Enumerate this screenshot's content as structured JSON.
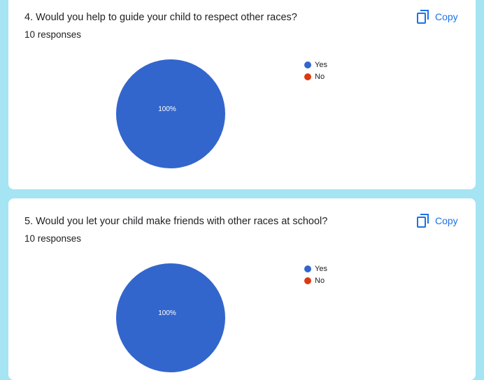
{
  "cards": [
    {
      "question": "4. Would you help to guide your child to respect other races?",
      "responses": "10 responses",
      "copy_label": "Copy",
      "legend": [
        {
          "label": "Yes",
          "color": "#3366cc"
        },
        {
          "label": "No",
          "color": "#dc3912"
        }
      ],
      "slice_label": "100%"
    },
    {
      "question": "5. Would you let your child make friends with other races at school?",
      "responses": "10 responses",
      "copy_label": "Copy",
      "legend": [
        {
          "label": "Yes",
          "color": "#3366cc"
        },
        {
          "label": "No",
          "color": "#dc3912"
        }
      ],
      "slice_label": "100%"
    }
  ],
  "chart_data": [
    {
      "type": "pie",
      "categories": [
        "Yes",
        "No"
      ],
      "values": [
        100,
        0
      ],
      "colors": [
        "#3366cc",
        "#dc3912"
      ],
      "data_labels": [
        "100%"
      ],
      "legend_position": "right"
    },
    {
      "type": "pie",
      "categories": [
        "Yes",
        "No"
      ],
      "values": [
        100,
        0
      ],
      "colors": [
        "#3366cc",
        "#dc3912"
      ],
      "data_labels": [
        "100%"
      ],
      "legend_position": "right"
    }
  ]
}
